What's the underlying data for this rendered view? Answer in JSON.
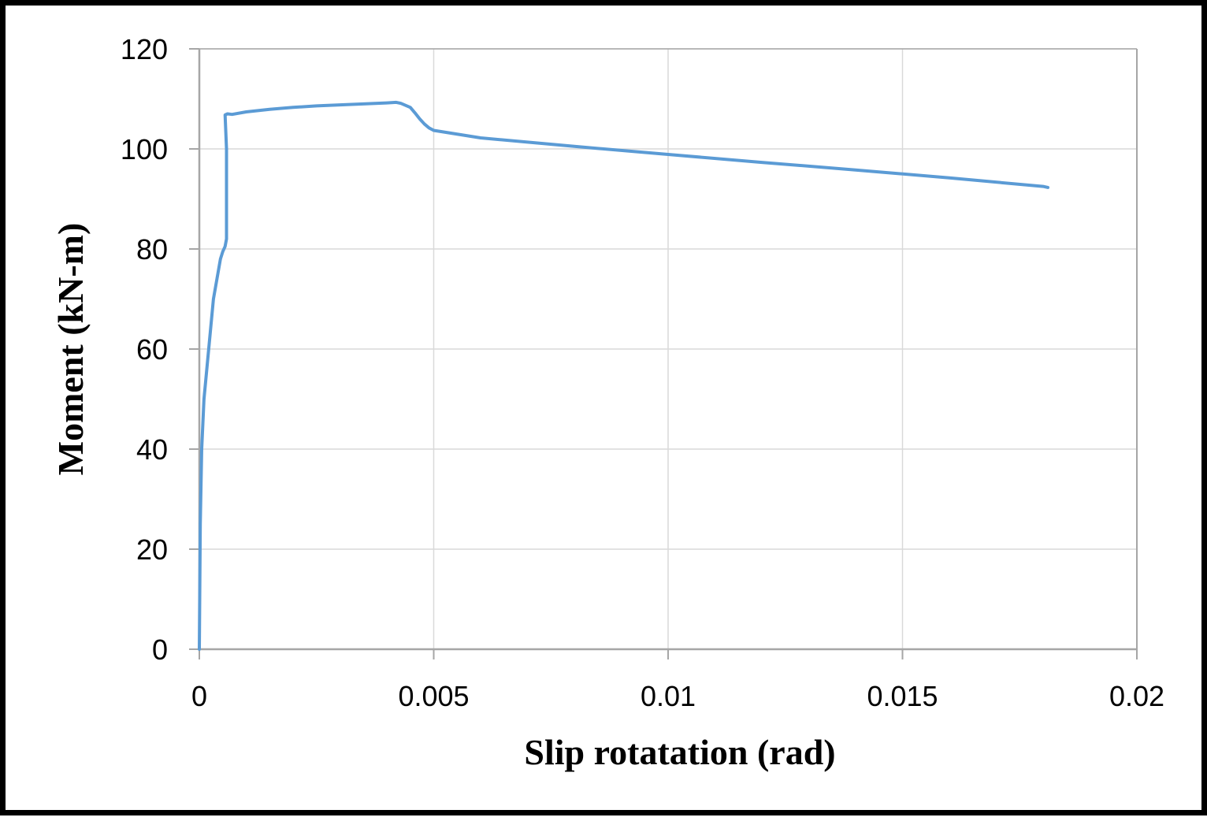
{
  "chart_data": {
    "type": "line",
    "title": "",
    "xlabel": "Slip rotatation (rad)",
    "ylabel": "Moment (kN-m)",
    "xlim": [
      0,
      0.02
    ],
    "ylim": [
      0,
      120
    ],
    "xticks": [
      0,
      0.005,
      0.01,
      0.015,
      0.02
    ],
    "xtick_labels": [
      "0",
      "0.005",
      "0.01",
      "0.015",
      "0.02"
    ],
    "yticks": [
      0,
      20,
      40,
      60,
      80,
      100,
      120
    ],
    "ytick_labels": [
      "0",
      "20",
      "40",
      "60",
      "80",
      "100",
      "120"
    ],
    "grid": true,
    "legend": "none",
    "colors": {
      "series": "#5b9bd5",
      "grid": "#d9d9d9",
      "axis": "#a6a6a6"
    },
    "series": [
      {
        "x": [
          0,
          2e-05,
          5e-05,
          0.0001,
          0.0002,
          0.0003,
          0.00045,
          0.0005,
          0.00055,
          0.00058,
          0.00058,
          0.00055,
          0.0006,
          0.0007,
          0.001,
          0.0015,
          0.002,
          0.0025,
          0.003,
          0.0035,
          0.004,
          0.0042,
          0.0043,
          0.0045,
          0.0046,
          0.0047,
          0.0048,
          0.0049,
          0.005,
          0.006,
          0.008,
          0.01,
          0.012,
          0.014,
          0.016,
          0.018,
          0.0181
        ],
        "y": [
          0,
          25,
          40,
          50,
          60,
          70,
          78,
          79.5,
          80.5,
          82,
          100,
          106.8,
          107,
          106.9,
          107.4,
          107.9,
          108.3,
          108.6,
          108.8,
          109,
          109.2,
          109.3,
          109.1,
          108.3,
          107.2,
          106,
          105,
          104.2,
          103.7,
          102.2,
          100.5,
          98.9,
          97.3,
          95.8,
          94.2,
          92.5,
          92.3
        ]
      }
    ]
  }
}
